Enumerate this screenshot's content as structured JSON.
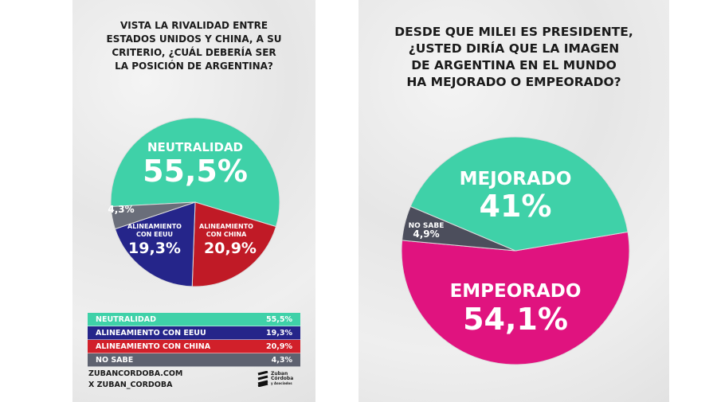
{
  "left": {
    "title": "VISTA LA RIVALIDAD ENTRE ESTADOS UNIDOS Y CHINA, A SU CRITERIO, ¿CUÁL DEBERÍA SER LA POSICIÓN DE ARGENTINA?",
    "title_lines": [
      "VISTA LA RIVALIDAD ENTRE",
      "ESTADOS UNIDOS Y CHINA, A SU",
      "CRITERIO, ¿CUÁL DEBERÍA SER",
      "LA POSICIÓN DE ARGENTINA?"
    ],
    "legend": [
      {
        "label": "NEUTRALIDAD",
        "value": "55,5%",
        "color": "#3fd1a8"
      },
      {
        "label": "ALINEAMIENTO CON EEUU",
        "value": "19,3%",
        "color": "#25258a"
      },
      {
        "label": "ALINEAMIENTO CON CHINA",
        "value": "20,9%",
        "color": "#d1202a"
      },
      {
        "label": "NO SABE",
        "value": "4,3%",
        "color": "#5e6270"
      }
    ],
    "footer": {
      "website": "ZUBANCORDOBA.COM",
      "social": "X ZUBAN_CORDOBA",
      "logo_text": "Zuban Córdoba y Asociados"
    }
  },
  "right": {
    "title": "DESDE QUE MILEI ES PRESIDENTE, ¿USTED DIRÍA QUE LA IMAGEN DE ARGENTINA EN EL MUNDO HA MEJORADO O EMPEORADO?",
    "title_lines": [
      "DESDE QUE MILEI ES PRESIDENTE,",
      "¿USTED DIRÍA QUE LA IMAGEN",
      "DE ARGENTINA EN EL MUNDO",
      "HA MEJORADO O EMPEORADO?"
    ]
  },
  "chart_data": [
    {
      "type": "pie",
      "title": "VISTA LA RIVALIDAD ENTRE ESTADOS UNIDOS Y CHINA, A SU CRITERIO, ¿CUÁL DEBERÍA SER LA POSICIÓN DE ARGENTINA?",
      "slices": [
        {
          "label": "NEUTRALIDAD",
          "value": 55.5,
          "display": "55,5%",
          "color": "#3fd1a8"
        },
        {
          "label": "ALINEAMIENTO CON CHINA",
          "value": 20.9,
          "display": "20,9%",
          "color": "#c01a26"
        },
        {
          "label": "ALINEAMIENTO CON EEUU",
          "value": 19.3,
          "display": "19,3%",
          "color": "#25258a"
        },
        {
          "label": "NO SABE",
          "value": 4.3,
          "display": "4,3%",
          "color": "#6a6e7a"
        }
      ]
    },
    {
      "type": "pie",
      "title": "DESDE QUE MILEI ES PRESIDENTE, ¿USTED DIRÍA QUE LA IMAGEN DE ARGENTINA EN EL MUNDO HA MEJORADO O EMPEORADO?",
      "slices": [
        {
          "label": "EMPEORADO",
          "value": 54.1,
          "display": "54,1%",
          "color": "#e0137f"
        },
        {
          "label": "NO SABE",
          "value": 4.9,
          "display": "4,9%",
          "color": "#4c4e5c"
        },
        {
          "label": "MEJORADO",
          "value": 41,
          "display": "41%",
          "color": "#3fd1a8"
        }
      ]
    }
  ]
}
